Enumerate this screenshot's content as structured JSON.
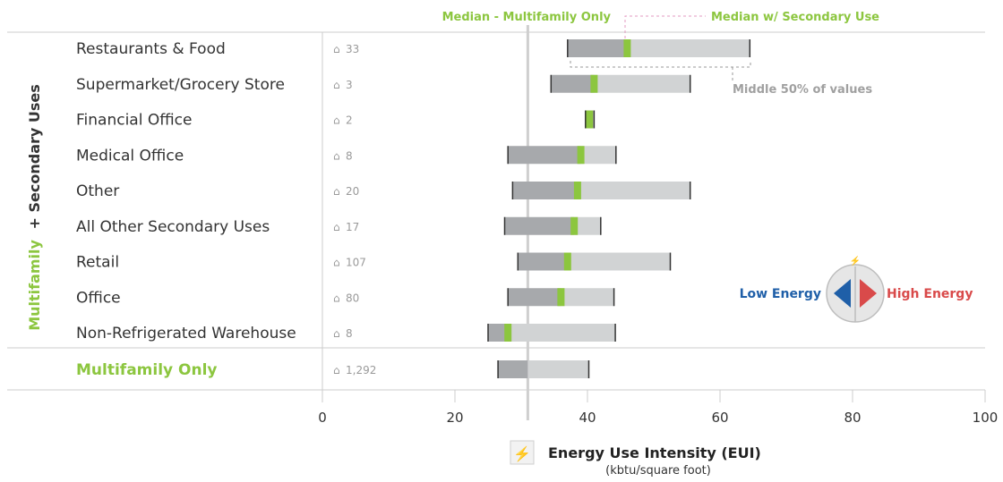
{
  "chart_data": {
    "type": "bar",
    "subtype": "range-box",
    "xlim": [
      0,
      100
    ],
    "x_ticks": [
      "0",
      "20",
      "40",
      "60",
      "80",
      "100"
    ],
    "xlabel": "Energy Use Intensity (EUI)",
    "xlabel_sub": "(kbtu/square foot)",
    "group_label_part1": "Multifamily",
    "group_label_part2": "+ Secondary Uses",
    "reference_line": {
      "label": "Median - Multifamily Only",
      "value": 31
    },
    "annotations": {
      "median_secondary": "Median w/ Secondary Use",
      "middle_50": "Middle 50% of values"
    },
    "categories": [
      {
        "name": "Restaurants & Food",
        "count": "33",
        "low": 37,
        "median": 46,
        "high": 64.5
      },
      {
        "name": "Supermarket/Grocery Store",
        "count": "3",
        "low": 34.5,
        "median": 41,
        "high": 55.5
      },
      {
        "name": "Financial Office",
        "count": "2",
        "low": 39.7,
        "median": 40.3,
        "high": 41
      },
      {
        "name": "Medical Office",
        "count": "8",
        "low": 28,
        "median": 39,
        "high": 44.3
      },
      {
        "name": "Other",
        "count": "20",
        "low": 28.7,
        "median": 38.5,
        "high": 55.5
      },
      {
        "name": "All Other Secondary Uses",
        "count": "17",
        "low": 27.5,
        "median": 38,
        "high": 42
      },
      {
        "name": "Retail",
        "count": "107",
        "low": 29.5,
        "median": 37,
        "high": 52.5
      },
      {
        "name": "Office",
        "count": "80",
        "low": 28,
        "median": 36,
        "high": 44
      },
      {
        "name": "Non-Refrigerated Warehouse",
        "count": "8",
        "low": 25,
        "median": 28,
        "high": 44.2
      },
      {
        "name": "Multifamily Only",
        "count": "1,292",
        "low": 26.5,
        "median": 31,
        "high": 40.2,
        "highlight": true
      }
    ],
    "legend": {
      "low": "Low Energy",
      "high": "High Energy"
    },
    "colors": {
      "box_lower": "#a7a9ac",
      "box_upper": "#d1d3d4",
      "median": "#8cc63f",
      "accent_green": "#8cc63f",
      "low_energy": "#1f5fa8",
      "high_energy": "#d94a4a",
      "gridline": "#cccccc",
      "reference_line": "#cfcfcf"
    }
  }
}
